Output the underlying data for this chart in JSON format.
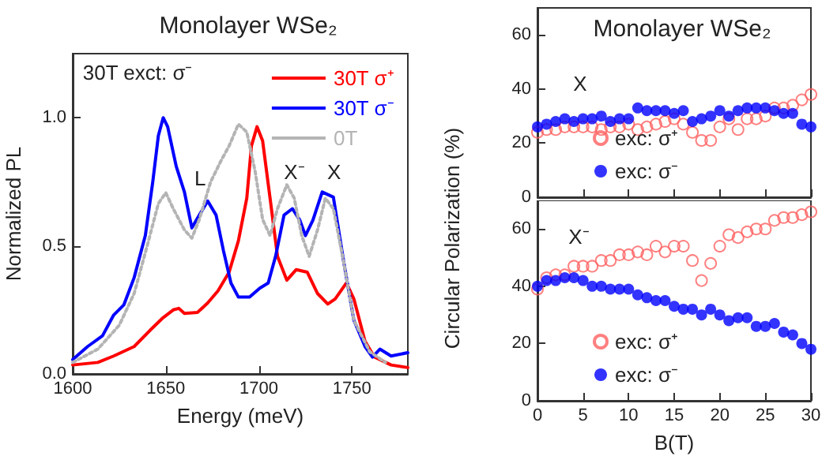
{
  "chart_data": [
    {
      "type": "line",
      "title": "Monolayer WSe₂",
      "xlabel": "Energy (meV)",
      "ylabel": "Normalized PL",
      "xlim": [
        1600,
        1780
      ],
      "xticks": [
        1600,
        1650,
        1700,
        1750
      ],
      "ylim": [
        0,
        1.25
      ],
      "yticks": [
        {
          "value": 0,
          "label": "0.0"
        },
        {
          "value": 0.5,
          "label": "0.5"
        },
        {
          "value": 1,
          "label": "1.0"
        }
      ],
      "legend": "top right",
      "marker": "none",
      "grid": false,
      "annotations": [
        "30T exct: σ⁻",
        "L",
        "X⁻",
        "X"
      ],
      "series": [
        {
          "name": "30T σ⁺",
          "color": "#ff0000",
          "line_style": "solid",
          "x": [
            1600,
            1613.5,
            1622,
            1633,
            1641.5,
            1648.6,
            1654,
            1657,
            1660,
            1667,
            1672.5,
            1678,
            1684,
            1689,
            1693.5,
            1696,
            1699,
            1702,
            1706,
            1710,
            1715,
            1720,
            1726,
            1731.5,
            1737,
            1741,
            1747,
            1751,
            1757,
            1762,
            1771,
            1780
          ],
          "values": [
            0.035,
            0.045,
            0.07,
            0.107,
            0.17,
            0.22,
            0.25,
            0.256,
            0.236,
            0.24,
            0.277,
            0.324,
            0.397,
            0.52,
            0.686,
            0.89,
            0.965,
            0.91,
            0.686,
            0.459,
            0.366,
            0.407,
            0.397,
            0.314,
            0.273,
            0.293,
            0.355,
            0.293,
            0.128,
            0.066,
            0.035,
            0.025
          ]
        },
        {
          "name": "30T σ⁻",
          "color": "#0000ff",
          "line_style": "solid",
          "x": [
            1600,
            1608,
            1616,
            1622,
            1627.5,
            1633,
            1639,
            1643,
            1646,
            1648.6,
            1651,
            1655.6,
            1660,
            1664,
            1668,
            1672.5,
            1677,
            1681,
            1685,
            1689,
            1695,
            1700.5,
            1705,
            1709,
            1713.5,
            1718,
            1722,
            1725,
            1729,
            1734,
            1740,
            1745.5,
            1751,
            1757,
            1761,
            1765,
            1771,
            1780
          ],
          "values": [
            0.056,
            0.107,
            0.149,
            0.23,
            0.27,
            0.376,
            0.54,
            0.75,
            0.93,
            1.0,
            0.965,
            0.81,
            0.71,
            0.57,
            0.62,
            0.675,
            0.62,
            0.48,
            0.355,
            0.3,
            0.3,
            0.335,
            0.355,
            0.46,
            0.62,
            0.645,
            0.6,
            0.54,
            0.6,
            0.71,
            0.69,
            0.44,
            0.21,
            0.107,
            0.066,
            0.097,
            0.07,
            0.083
          ]
        },
        {
          "name": "0T",
          "color": "#b4b4b4",
          "line_style": "dotted",
          "x": [
            1600,
            1613.5,
            1625,
            1633,
            1640,
            1646,
            1650,
            1654,
            1660,
            1664,
            1668,
            1674,
            1679.5,
            1684,
            1689,
            1693.5,
            1698,
            1702,
            1706,
            1710,
            1715,
            1719,
            1723,
            1727,
            1731.5,
            1735.7,
            1740,
            1745.5,
            1751,
            1759.5,
            1768
          ],
          "values": [
            0.045,
            0.097,
            0.19,
            0.314,
            0.5,
            0.665,
            0.707,
            0.645,
            0.562,
            0.53,
            0.603,
            0.748,
            0.83,
            0.89,
            0.975,
            0.944,
            0.79,
            0.603,
            0.54,
            0.645,
            0.738,
            0.686,
            0.54,
            0.459,
            0.562,
            0.686,
            0.645,
            0.438,
            0.21,
            0.087,
            0.045
          ]
        }
      ]
    },
    {
      "type": "scatter",
      "title": "Monolayer WSe₂",
      "xlim": [
        0,
        30
      ],
      "xticks": [
        0,
        5,
        10,
        15,
        20,
        25,
        30
      ],
      "ylim": [
        0,
        70
      ],
      "yticks": [
        0,
        20,
        40,
        60
      ],
      "tick_labels": "y",
      "legend": "bottom left",
      "marker": "circle",
      "grid": false,
      "annotations": [
        "X"
      ],
      "x": [
        0,
        1,
        2,
        3,
        4,
        5,
        6,
        7,
        8,
        9,
        10,
        11,
        12,
        13,
        14,
        15,
        16,
        17,
        18,
        19,
        20,
        21,
        22,
        23,
        24,
        25,
        26,
        27,
        28,
        29,
        30
      ],
      "series": [
        {
          "name": "exc: σ⁺",
          "color": "#ff6060",
          "values": [
            24,
            25,
            25,
            26,
            26,
            26,
            26,
            25,
            26,
            26,
            27,
            25,
            26,
            27,
            28,
            29,
            27,
            24,
            21,
            21,
            26,
            29,
            25,
            29,
            29,
            30,
            33,
            33,
            34,
            36,
            38
          ]
        },
        {
          "name": "exc: σ⁻",
          "color": "#0000ff",
          "values": [
            26,
            27,
            28,
            29,
            28,
            29,
            29,
            30,
            28,
            29,
            29,
            33,
            32,
            32,
            32,
            31,
            32,
            28,
            29,
            30,
            32,
            30,
            32,
            33,
            33,
            33,
            32,
            31,
            31,
            27,
            26
          ]
        }
      ]
    },
    {
      "type": "scatter",
      "xlabel": "B(T)",
      "ylabel": "Circular Polarization (%)",
      "xlim": [
        0,
        30
      ],
      "xticks": [
        0,
        5,
        10,
        15,
        20,
        25,
        30
      ],
      "ylim": [
        0,
        70
      ],
      "yticks": [
        0,
        20,
        40,
        60
      ],
      "legend": "bottom left",
      "marker": "circle",
      "grid": false,
      "annotations": [
        "X⁻"
      ],
      "x": [
        0,
        1,
        2,
        3,
        4,
        5,
        6,
        7,
        8,
        9,
        10,
        11,
        12,
        13,
        14,
        15,
        16,
        17,
        18,
        19,
        20,
        21,
        22,
        23,
        24,
        25,
        26,
        27,
        28,
        29,
        30
      ],
      "series": [
        {
          "name": "exc: σ⁺",
          "color": "#ff6060",
          "values": [
            39,
            43,
            44,
            44,
            47,
            47,
            47,
            49,
            49,
            51,
            51,
            52,
            51,
            54,
            52,
            54,
            54,
            49,
            42,
            48,
            54,
            58,
            57,
            59,
            60,
            60,
            63,
            64,
            64,
            65,
            66
          ]
        },
        {
          "name": "exc: σ⁻",
          "color": "#0000ff",
          "values": [
            40,
            42,
            42,
            43,
            43,
            42,
            40,
            40,
            39,
            39,
            39,
            37,
            36,
            35,
            35,
            33,
            32,
            32,
            30,
            32,
            30,
            28,
            29,
            29,
            26,
            26,
            27,
            24,
            23,
            20,
            18
          ]
        }
      ]
    }
  ]
}
